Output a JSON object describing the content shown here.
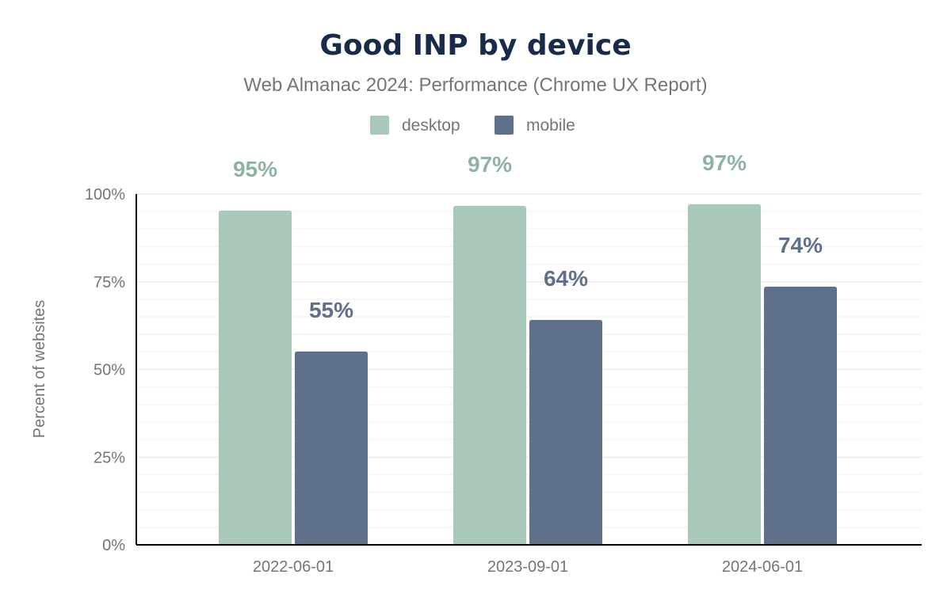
{
  "chart_data": {
    "type": "bar",
    "title": "Good INP by device",
    "subtitle": "Web Almanac 2024: Performance (Chrome UX Report)",
    "xlabel": "",
    "ylabel": "Percent of websites",
    "ylim": [
      0,
      100
    ],
    "yticks": [
      "0%",
      "25%",
      "50%",
      "75%",
      "100%"
    ],
    "grid": true,
    "legend_placement": "top",
    "categories": [
      "2022-06-01",
      "2023-09-01",
      "2024-06-01"
    ],
    "series": [
      {
        "name": "desktop",
        "color": "#a8c9b9",
        "label_color": "#8fb3a1",
        "values": [
          95.3,
          96.6,
          97.1
        ],
        "labels": [
          "95%",
          "97%",
          "97%"
        ]
      },
      {
        "name": "mobile",
        "color": "#5f708b",
        "label_color": "#5f708b",
        "values": [
          55.1,
          64.1,
          73.6
        ],
        "labels": [
          "55%",
          "64%",
          "74%"
        ]
      }
    ]
  }
}
